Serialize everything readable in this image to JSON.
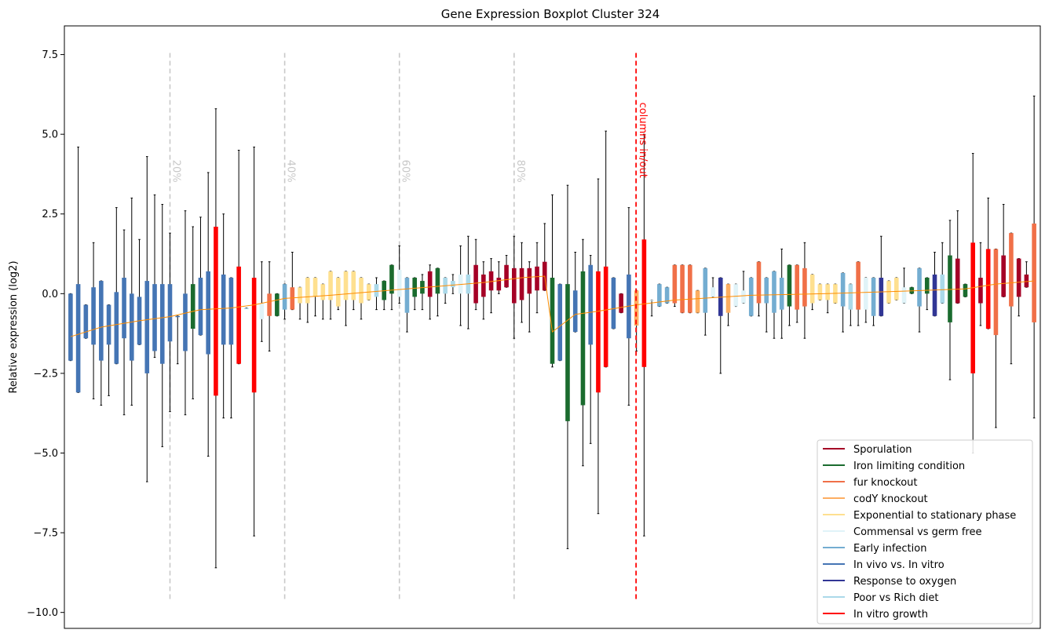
{
  "chart_data": {
    "type": "boxplot",
    "title": "Gene Expression Boxplot Cluster 324",
    "ylabel": "Relative expression (log2)",
    "ylim": [
      -10.5,
      8.4
    ],
    "yticks": [
      7.5,
      5.0,
      2.5,
      0.0,
      -2.5,
      -5.0,
      -7.5,
      -10.0
    ],
    "ytick_labels": [
      "7.5",
      "5.0",
      "2.5",
      "0.0",
      "−2.5",
      "−5.0",
      "−7.5",
      "−10.0"
    ],
    "xlim": [
      0,
      152
    ],
    "grid": false,
    "legend_position": "lower right",
    "percentile_markers": [
      {
        "label": "20%",
        "x": 14
      },
      {
        "label": "40%",
        "x": 29
      },
      {
        "label": "60%",
        "x": 44
      },
      {
        "label": "80%",
        "x": 59
      }
    ],
    "divider": {
      "label": "columns in/out",
      "x": 75
    },
    "series": [
      {
        "name": "Sporulation",
        "color": "#a50026"
      },
      {
        "name": "Iron limiting condition",
        "color": "#1a6b2e"
      },
      {
        "name": "fur knockout",
        "color": "#f07048"
      },
      {
        "name": "codY knockout",
        "color": "#fdae61"
      },
      {
        "name": "Exponential to stationary phase",
        "color": "#fee090"
      },
      {
        "name": "Commensal vs germ free",
        "color": "#e0f3f8"
      },
      {
        "name": "Early infection",
        "color": "#74add1"
      },
      {
        "name": "In vivo vs. In vitro",
        "color": "#4575b4"
      },
      {
        "name": "Response to oxygen",
        "color": "#313695"
      },
      {
        "name": "Poor vs Rich diet",
        "color": "#abd9e9"
      },
      {
        "name": "In vitro growth",
        "color": "#ff0000"
      }
    ],
    "boxes": [
      {
        "x": 1,
        "q1": -2.1,
        "q3": 0.0,
        "wlo": -2.1,
        "whi": 0.0,
        "s": 7
      },
      {
        "x": 2,
        "q1": -3.1,
        "q3": 0.3,
        "wlo": -3.1,
        "whi": 4.6,
        "s": 7
      },
      {
        "x": 3,
        "q1": -1.4,
        "q3": -0.35,
        "wlo": -1.4,
        "whi": -0.35,
        "s": 7
      },
      {
        "x": 4,
        "q1": -1.6,
        "q3": 0.2,
        "wlo": -3.3,
        "whi": 1.6,
        "s": 7
      },
      {
        "x": 5,
        "q1": -2.1,
        "q3": 0.4,
        "wlo": -3.5,
        "whi": 0.4,
        "s": 7
      },
      {
        "x": 6,
        "q1": -1.6,
        "q3": -0.35,
        "wlo": -3.2,
        "whi": -0.35,
        "s": 7
      },
      {
        "x": 7,
        "q1": -2.2,
        "q3": 0.05,
        "wlo": -2.2,
        "whi": 2.7,
        "s": 7
      },
      {
        "x": 8,
        "q1": -1.4,
        "q3": 0.5,
        "wlo": -3.8,
        "whi": 2.0,
        "s": 7
      },
      {
        "x": 9,
        "q1": -2.1,
        "q3": 0.0,
        "wlo": -3.5,
        "whi": 3.0,
        "s": 7
      },
      {
        "x": 10,
        "q1": -1.6,
        "q3": -0.1,
        "wlo": -1.6,
        "whi": 1.7,
        "s": 7
      },
      {
        "x": 11,
        "q1": -2.5,
        "q3": 0.4,
        "wlo": -5.9,
        "whi": 4.3,
        "s": 7
      },
      {
        "x": 12,
        "q1": -1.8,
        "q3": 0.3,
        "wlo": -2.0,
        "whi": 3.1,
        "s": 7
      },
      {
        "x": 13,
        "q1": -2.2,
        "q3": 0.3,
        "wlo": -4.8,
        "whi": 2.8,
        "s": 7
      },
      {
        "x": 14,
        "q1": -1.5,
        "q3": 0.3,
        "wlo": -3.7,
        "whi": 1.9,
        "s": 7
      },
      {
        "x": 15,
        "q1": -0.7,
        "q3": -0.7,
        "wlo": -2.2,
        "whi": -0.7,
        "s": 7
      },
      {
        "x": 16,
        "q1": -1.8,
        "q3": 0.0,
        "wlo": -3.8,
        "whi": 2.6,
        "s": 7
      },
      {
        "x": 17,
        "q1": -1.1,
        "q3": 0.3,
        "wlo": -3.3,
        "whi": 2.1,
        "s": 1
      },
      {
        "x": 18,
        "q1": -1.3,
        "q3": 0.5,
        "wlo": -1.3,
        "whi": 2.4,
        "s": 7
      },
      {
        "x": 19,
        "q1": -1.9,
        "q3": 0.7,
        "wlo": -5.1,
        "whi": 3.8,
        "s": 7
      },
      {
        "x": 20,
        "q1": -3.2,
        "q3": 2.1,
        "wlo": -8.6,
        "whi": 5.8,
        "s": 10
      },
      {
        "x": 21,
        "q1": -1.6,
        "q3": 0.6,
        "wlo": -3.9,
        "whi": 2.5,
        "s": 7
      },
      {
        "x": 22,
        "q1": -1.6,
        "q3": 0.5,
        "wlo": -3.9,
        "whi": 0.5,
        "s": 7
      },
      {
        "x": 23,
        "q1": -2.2,
        "q3": 0.85,
        "wlo": -2.2,
        "whi": 4.5,
        "s": 10
      },
      {
        "x": 24,
        "q1": -0.45,
        "q3": -0.45,
        "wlo": -0.45,
        "whi": -0.45,
        "s": 9
      },
      {
        "x": 25,
        "q1": -3.1,
        "q3": 0.5,
        "wlo": -7.6,
        "whi": 4.6,
        "s": 10
      },
      {
        "x": 26,
        "q1": -0.8,
        "q3": -0.3,
        "wlo": -1.5,
        "whi": 1.0,
        "s": 5
      },
      {
        "x": 27,
        "q1": -0.7,
        "q3": 0.0,
        "wlo": -1.8,
        "whi": 1.0,
        "s": 2
      },
      {
        "x": 28,
        "q1": -0.7,
        "q3": 0.0,
        "wlo": -0.7,
        "whi": 0.0,
        "s": 1
      },
      {
        "x": 29,
        "q1": -0.5,
        "q3": 0.3,
        "wlo": -0.8,
        "whi": 0.3,
        "s": 6
      },
      {
        "x": 30,
        "q1": -0.5,
        "q3": 0.2,
        "wlo": -0.5,
        "whi": 1.3,
        "s": 2
      },
      {
        "x": 31,
        "q1": -0.3,
        "q3": 0.2,
        "wlo": -0.8,
        "whi": 0.2,
        "s": 4
      },
      {
        "x": 32,
        "q1": -0.3,
        "q3": 0.5,
        "wlo": -0.9,
        "whi": 0.5,
        "s": 4
      },
      {
        "x": 33,
        "q1": -0.1,
        "q3": 0.5,
        "wlo": -0.7,
        "whi": 0.5,
        "s": 4
      },
      {
        "x": 34,
        "q1": -0.2,
        "q3": 0.3,
        "wlo": -0.8,
        "whi": 0.3,
        "s": 4
      },
      {
        "x": 35,
        "q1": -0.2,
        "q3": 0.7,
        "wlo": -0.8,
        "whi": 0.7,
        "s": 4
      },
      {
        "x": 36,
        "q1": -0.4,
        "q3": 0.5,
        "wlo": -0.5,
        "whi": 0.5,
        "s": 4
      },
      {
        "x": 37,
        "q1": -0.2,
        "q3": 0.7,
        "wlo": -1.0,
        "whi": 0.7,
        "s": 4
      },
      {
        "x": 38,
        "q1": -0.2,
        "q3": 0.7,
        "wlo": -0.5,
        "whi": 0.7,
        "s": 4
      },
      {
        "x": 39,
        "q1": -0.3,
        "q3": 0.5,
        "wlo": -0.8,
        "whi": 0.5,
        "s": 4
      },
      {
        "x": 40,
        "q1": -0.2,
        "q3": 0.3,
        "wlo": -0.2,
        "whi": 0.3,
        "s": 4
      },
      {
        "x": 41,
        "q1": -0.1,
        "q3": 0.3,
        "wlo": -0.5,
        "whi": 0.5,
        "s": 9
      },
      {
        "x": 42,
        "q1": -0.2,
        "q3": 0.4,
        "wlo": -0.5,
        "whi": 0.4,
        "s": 1
      },
      {
        "x": 43,
        "q1": 0.0,
        "q3": 0.9,
        "wlo": -0.5,
        "whi": 0.9,
        "s": 1
      },
      {
        "x": 44,
        "q1": -0.1,
        "q3": 0.75,
        "wlo": -0.3,
        "whi": 1.5,
        "s": 5
      },
      {
        "x": 45,
        "q1": -0.6,
        "q3": 0.5,
        "wlo": -1.2,
        "whi": 0.5,
        "s": 6
      },
      {
        "x": 46,
        "q1": -0.1,
        "q3": 0.5,
        "wlo": -0.5,
        "whi": 0.5,
        "s": 1
      },
      {
        "x": 47,
        "q1": 0.0,
        "q3": 0.4,
        "wlo": -0.5,
        "whi": 0.6,
        "s": 1
      },
      {
        "x": 48,
        "q1": -0.1,
        "q3": 0.7,
        "wlo": -0.8,
        "whi": 0.9,
        "s": 0
      },
      {
        "x": 49,
        "q1": 0.0,
        "q3": 0.8,
        "wlo": -0.7,
        "whi": 0.8,
        "s": 1
      },
      {
        "x": 50,
        "q1": 0.0,
        "q3": 0.5,
        "wlo": -0.3,
        "whi": 0.5,
        "s": 9
      },
      {
        "x": 51,
        "q1": 0.2,
        "q3": 0.4,
        "wlo": 0.0,
        "whi": 0.6,
        "s": 9
      },
      {
        "x": 52,
        "q1": 0.0,
        "q3": 0.6,
        "wlo": -1.0,
        "whi": 1.5,
        "s": 5
      },
      {
        "x": 53,
        "q1": 0.0,
        "q3": 0.6,
        "wlo": -1.1,
        "whi": 1.8,
        "s": 9
      },
      {
        "x": 54,
        "q1": -0.3,
        "q3": 0.9,
        "wlo": -0.5,
        "whi": 1.7,
        "s": 0
      },
      {
        "x": 55,
        "q1": -0.1,
        "q3": 0.6,
        "wlo": -0.8,
        "whi": 1.0,
        "s": 0
      },
      {
        "x": 56,
        "q1": 0.1,
        "q3": 0.7,
        "wlo": -0.6,
        "whi": 1.1,
        "s": 0
      },
      {
        "x": 57,
        "q1": 0.1,
        "q3": 0.5,
        "wlo": 0.0,
        "whi": 1.0,
        "s": 0
      },
      {
        "x": 58,
        "q1": 0.2,
        "q3": 0.9,
        "wlo": 0.2,
        "whi": 1.2,
        "s": 0
      },
      {
        "x": 59,
        "q1": -0.3,
        "q3": 0.8,
        "wlo": -1.4,
        "whi": 1.8,
        "s": 0
      },
      {
        "x": 60,
        "q1": -0.2,
        "q3": 0.8,
        "wlo": -0.9,
        "whi": 1.6,
        "s": 0
      },
      {
        "x": 61,
        "q1": 0.0,
        "q3": 0.8,
        "wlo": -1.2,
        "whi": 1.0,
        "s": 0
      },
      {
        "x": 62,
        "q1": 0.1,
        "q3": 0.85,
        "wlo": -0.6,
        "whi": 1.6,
        "s": 0
      },
      {
        "x": 63,
        "q1": 0.1,
        "q3": 1.0,
        "wlo": 0.1,
        "whi": 2.2,
        "s": 0
      },
      {
        "x": 64,
        "q1": -2.2,
        "q3": 0.5,
        "wlo": -2.3,
        "whi": 3.1,
        "s": 1
      },
      {
        "x": 65,
        "q1": -2.1,
        "q3": 0.3,
        "wlo": -2.1,
        "whi": 0.3,
        "s": 7
      },
      {
        "x": 66,
        "q1": -4.0,
        "q3": 0.3,
        "wlo": -8.0,
        "whi": 3.4,
        "s": 1
      },
      {
        "x": 67,
        "q1": -1.2,
        "q3": 0.1,
        "wlo": -1.2,
        "whi": 1.3,
        "s": 7
      },
      {
        "x": 68,
        "q1": -3.5,
        "q3": 0.7,
        "wlo": -5.4,
        "whi": 1.7,
        "s": 1
      },
      {
        "x": 69,
        "q1": -1.6,
        "q3": 0.9,
        "wlo": -4.7,
        "whi": 1.2,
        "s": 7
      },
      {
        "x": 70,
        "q1": -3.1,
        "q3": 0.7,
        "wlo": -6.9,
        "whi": 3.6,
        "s": 10
      },
      {
        "x": 71,
        "q1": -2.3,
        "q3": 0.85,
        "wlo": -2.3,
        "whi": 5.1,
        "s": 10
      },
      {
        "x": 72,
        "q1": -1.1,
        "q3": 0.5,
        "wlo": -1.1,
        "whi": 0.5,
        "s": 7
      },
      {
        "x": 73,
        "q1": -0.6,
        "q3": 0.0,
        "wlo": -0.6,
        "whi": 0.0,
        "s": 0
      },
      {
        "x": 74,
        "q1": -1.4,
        "q3": 0.6,
        "wlo": -3.5,
        "whi": 2.7,
        "s": 7
      },
      {
        "x": 75,
        "q1": -1.0,
        "q3": 0.1,
        "wlo": -1.8,
        "whi": 0.1,
        "s": 3
      },
      {
        "x": 76,
        "q1": -2.3,
        "q3": 1.7,
        "wlo": -7.6,
        "whi": 5.0,
        "s": 10
      },
      {
        "x": 77,
        "q1": -0.2,
        "q3": -0.2,
        "wlo": -0.7,
        "whi": -0.2,
        "s": 5
      },
      {
        "x": 78,
        "q1": -0.4,
        "q3": 0.3,
        "wlo": -0.4,
        "whi": 0.3,
        "s": 6
      },
      {
        "x": 79,
        "q1": -0.3,
        "q3": 0.2,
        "wlo": -0.3,
        "whi": 0.2,
        "s": 6
      },
      {
        "x": 80,
        "q1": -0.3,
        "q3": 0.9,
        "wlo": -0.4,
        "whi": 0.9,
        "s": 2
      },
      {
        "x": 81,
        "q1": -0.6,
        "q3": 0.9,
        "wlo": -0.6,
        "whi": 0.9,
        "s": 2
      },
      {
        "x": 82,
        "q1": -0.6,
        "q3": 0.9,
        "wlo": -0.6,
        "whi": 0.9,
        "s": 2
      },
      {
        "x": 83,
        "q1": -0.6,
        "q3": 0.1,
        "wlo": -0.6,
        "whi": 0.1,
        "s": 3
      },
      {
        "x": 84,
        "q1": -0.6,
        "q3": 0.8,
        "wlo": -1.3,
        "whi": 0.8,
        "s": 6
      },
      {
        "x": 85,
        "q1": -0.1,
        "q3": 0.2,
        "wlo": -0.1,
        "whi": 0.5,
        "s": 5
      },
      {
        "x": 86,
        "q1": -0.7,
        "q3": 0.5,
        "wlo": -2.5,
        "whi": 0.5,
        "s": 8
      },
      {
        "x": 87,
        "q1": -0.6,
        "q3": 0.3,
        "wlo": -1.0,
        "whi": 0.3,
        "s": 3
      },
      {
        "x": 88,
        "q1": -0.4,
        "q3": 0.3,
        "wlo": -0.4,
        "whi": 0.3,
        "s": 5
      },
      {
        "x": 89,
        "q1": -0.3,
        "q3": 0.1,
        "wlo": -0.3,
        "whi": 0.7,
        "s": 5
      },
      {
        "x": 90,
        "q1": -0.7,
        "q3": 0.5,
        "wlo": -0.7,
        "whi": 0.5,
        "s": 6
      },
      {
        "x": 91,
        "q1": -0.3,
        "q3": 1.0,
        "wlo": -0.7,
        "whi": 1.0,
        "s": 2
      },
      {
        "x": 92,
        "q1": -0.3,
        "q3": 0.5,
        "wlo": -1.2,
        "whi": 0.5,
        "s": 6
      },
      {
        "x": 93,
        "q1": -0.6,
        "q3": 0.7,
        "wlo": -1.4,
        "whi": 0.7,
        "s": 6
      },
      {
        "x": 94,
        "q1": -0.5,
        "q3": 0.5,
        "wlo": -1.4,
        "whi": 1.4,
        "s": 6
      },
      {
        "x": 95,
        "q1": -0.4,
        "q3": 0.9,
        "wlo": -1.0,
        "whi": 0.9,
        "s": 1
      },
      {
        "x": 96,
        "q1": -0.5,
        "q3": 0.9,
        "wlo": -0.9,
        "whi": 0.9,
        "s": 2
      },
      {
        "x": 97,
        "q1": -0.4,
        "q3": 0.8,
        "wlo": -1.4,
        "whi": 1.6,
        "s": 2
      },
      {
        "x": 98,
        "q1": -0.3,
        "q3": 0.6,
        "wlo": -0.5,
        "whi": 0.6,
        "s": 4
      },
      {
        "x": 99,
        "q1": -0.2,
        "q3": 0.3,
        "wlo": -0.2,
        "whi": 0.3,
        "s": 4
      },
      {
        "x": 100,
        "q1": -0.2,
        "q3": 0.3,
        "wlo": -0.6,
        "whi": 0.3,
        "s": 4
      },
      {
        "x": 101,
        "q1": -0.3,
        "q3": 0.3,
        "wlo": -0.3,
        "whi": 0.3,
        "s": 4
      },
      {
        "x": 102,
        "q1": -0.4,
        "q3": 0.65,
        "wlo": -1.2,
        "whi": 0.65,
        "s": 6
      },
      {
        "x": 103,
        "q1": -0.5,
        "q3": 0.3,
        "wlo": -1.0,
        "whi": 0.3,
        "s": 9
      },
      {
        "x": 104,
        "q1": -0.5,
        "q3": 1.0,
        "wlo": -1.0,
        "whi": 1.0,
        "s": 2
      },
      {
        "x": 105,
        "q1": -0.5,
        "q3": 0.5,
        "wlo": -0.9,
        "whi": 0.5,
        "s": 5
      },
      {
        "x": 106,
        "q1": -0.7,
        "q3": 0.5,
        "wlo": -1.0,
        "whi": 0.5,
        "s": 6
      },
      {
        "x": 107,
        "q1": -0.7,
        "q3": 0.5,
        "wlo": -0.7,
        "whi": 1.8,
        "s": 8
      },
      {
        "x": 108,
        "q1": -0.3,
        "q3": 0.4,
        "wlo": -0.3,
        "whi": 0.4,
        "s": 4
      },
      {
        "x": 109,
        "q1": -0.2,
        "q3": 0.5,
        "wlo": -0.2,
        "whi": 0.5,
        "s": 4
      },
      {
        "x": 110,
        "q1": -0.3,
        "q3": 0.2,
        "wlo": -0.3,
        "whi": 0.8,
        "s": 5
      },
      {
        "x": 111,
        "q1": 0.0,
        "q3": 0.2,
        "wlo": 0.0,
        "whi": 0.2,
        "s": 1
      },
      {
        "x": 112,
        "q1": -0.4,
        "q3": 0.8,
        "wlo": -1.2,
        "whi": 0.8,
        "s": 6
      },
      {
        "x": 113,
        "q1": 0.0,
        "q3": 0.5,
        "wlo": -0.5,
        "whi": 0.5,
        "s": 1
      },
      {
        "x": 114,
        "q1": -0.7,
        "q3": 0.6,
        "wlo": -0.7,
        "whi": 1.3,
        "s": 8
      },
      {
        "x": 115,
        "q1": -0.3,
        "q3": 0.6,
        "wlo": -0.3,
        "whi": 1.6,
        "s": 9
      },
      {
        "x": 116,
        "q1": -0.9,
        "q3": 1.2,
        "wlo": -2.7,
        "whi": 2.3,
        "s": 1
      },
      {
        "x": 117,
        "q1": -0.3,
        "q3": 1.1,
        "wlo": -0.3,
        "whi": 2.6,
        "s": 0
      },
      {
        "x": 118,
        "q1": -0.1,
        "q3": 0.3,
        "wlo": -0.1,
        "whi": 0.3,
        "s": 1
      },
      {
        "x": 119,
        "q1": -2.5,
        "q3": 1.6,
        "wlo": -5.0,
        "whi": 4.4,
        "s": 10
      },
      {
        "x": 120,
        "q1": -0.3,
        "q3": 0.5,
        "wlo": -1.0,
        "whi": 1.6,
        "s": 0
      },
      {
        "x": 121,
        "q1": -1.1,
        "q3": 1.4,
        "wlo": -1.1,
        "whi": 3.0,
        "s": 10
      },
      {
        "x": 122,
        "q1": -1.3,
        "q3": 1.4,
        "wlo": -4.2,
        "whi": 1.4,
        "s": 2
      },
      {
        "x": 123,
        "q1": -0.1,
        "q3": 1.2,
        "wlo": -0.1,
        "whi": 2.8,
        "s": 0
      },
      {
        "x": 124,
        "q1": -0.4,
        "q3": 1.9,
        "wlo": -2.2,
        "whi": 1.9,
        "s": 2
      },
      {
        "x": 125,
        "q1": -0.1,
        "q3": 1.1,
        "wlo": -0.7,
        "whi": 1.1,
        "s": 0
      },
      {
        "x": 126,
        "q1": 0.2,
        "q3": 0.6,
        "wlo": 0.2,
        "whi": 1.0,
        "s": 0
      },
      {
        "x": 127,
        "q1": -0.9,
        "q3": 2.2,
        "wlo": -3.9,
        "whi": 6.2,
        "s": 2
      }
    ],
    "median_line": [
      [
        1,
        -1.35
      ],
      [
        5,
        -1.05
      ],
      [
        10,
        -0.85
      ],
      [
        14,
        -0.72
      ],
      [
        18,
        -0.5
      ],
      [
        22,
        -0.45
      ],
      [
        25,
        -0.35
      ],
      [
        29,
        -0.15
      ],
      [
        35,
        -0.05
      ],
      [
        40,
        0.05
      ],
      [
        45,
        0.15
      ],
      [
        50,
        0.25
      ],
      [
        55,
        0.35
      ],
      [
        60,
        0.5
      ],
      [
        63,
        0.55
      ],
      [
        64,
        -1.2
      ],
      [
        67,
        -0.65
      ],
      [
        70,
        -0.55
      ],
      [
        75,
        -0.35
      ],
      [
        80,
        -0.2
      ],
      [
        90,
        -0.05
      ],
      [
        100,
        0.0
      ],
      [
        110,
        0.08
      ],
      [
        118,
        0.15
      ],
      [
        122,
        0.3
      ],
      [
        127,
        0.4
      ]
    ]
  }
}
